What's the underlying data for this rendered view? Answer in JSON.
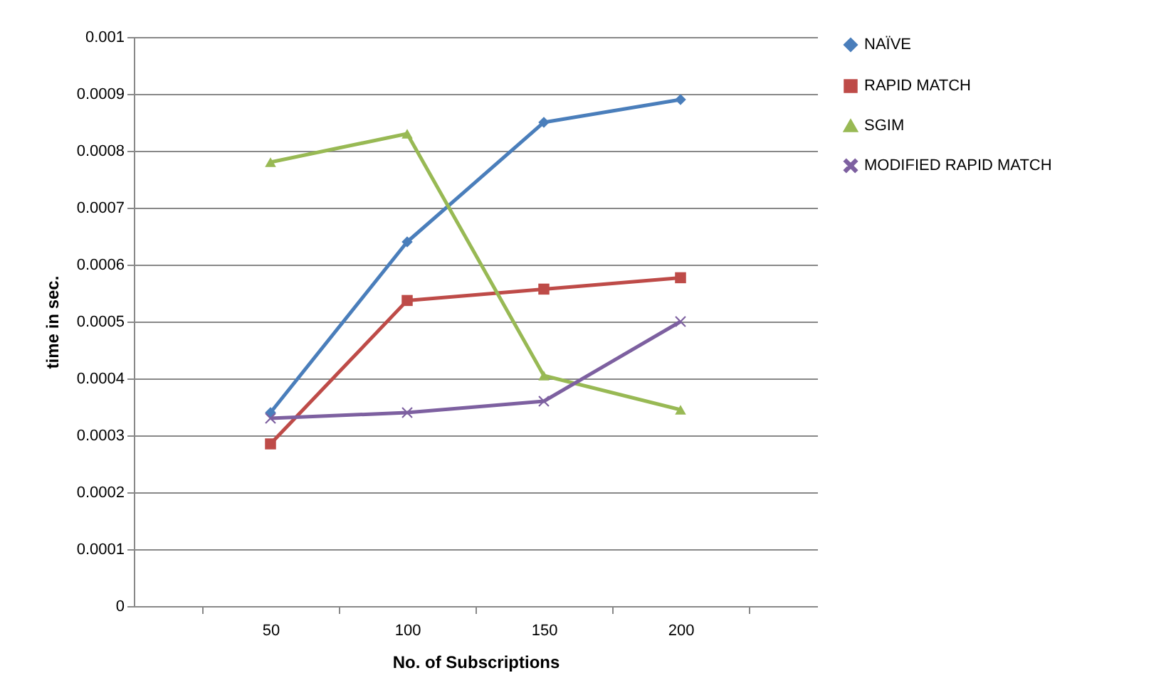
{
  "chart_data": {
    "type": "line",
    "xlabel": "No. of Subscriptions",
    "ylabel": "time in sec.",
    "categories": [
      "50",
      "100",
      "150",
      "200"
    ],
    "series": [
      {
        "name": "NAÏVE",
        "color": "#4a7ebb",
        "marker": "diamond",
        "values": [
          0.00034,
          0.00064,
          0.00085,
          0.00089
        ]
      },
      {
        "name": "RAPID MATCH",
        "color": "#be4b48",
        "marker": "square",
        "values": [
          0.000285,
          0.000537,
          0.000557,
          0.000577
        ]
      },
      {
        "name": "SGIM",
        "color": "#98b954",
        "marker": "triangle",
        "values": [
          0.00078,
          0.00083,
          0.000405,
          0.000345
        ]
      },
      {
        "name": "MODIFIED RAPID MATCH",
        "color": "#7d60a0",
        "marker": "cross",
        "values": [
          0.00033,
          0.00034,
          0.00036,
          0.0005
        ]
      }
    ],
    "ylim": [
      0,
      0.001
    ],
    "yticks": [
      0,
      0.0001,
      0.0002,
      0.0003,
      0.0004,
      0.0005,
      0.0006,
      0.0007,
      0.0008,
      0.0009,
      0.001
    ],
    "grid": "y",
    "legend": "right",
    "line_style": "solid"
  }
}
